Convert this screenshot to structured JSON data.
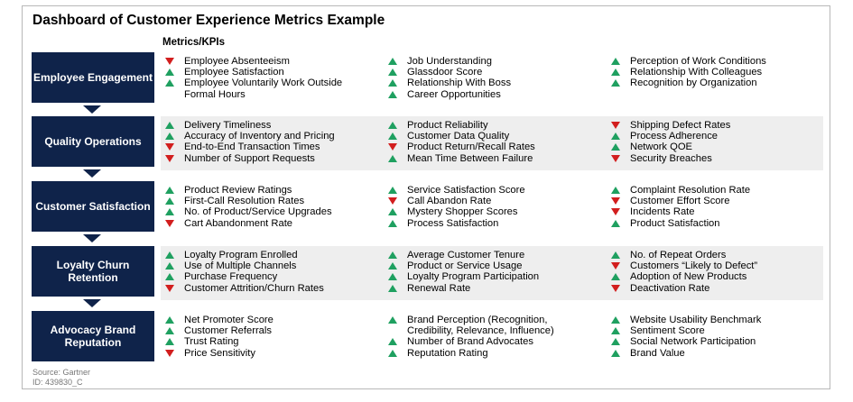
{
  "title": "Dashboard of Customer Experience Metrics Example",
  "subheading": "Metrics/KPIs",
  "colors": {
    "box": "#0f234a",
    "up": "#1fa060",
    "down": "#d21e1e",
    "band": "#eeeeee"
  },
  "categories": [
    {
      "label": "Employee Engagement",
      "columns": [
        [
          {
            "text": "Employee Absenteeism",
            "trend": "down"
          },
          {
            "text": "Employee Satisfaction",
            "trend": "up"
          },
          {
            "text": "Employee Voluntarily Work Outside Formal Hours",
            "trend": "up"
          }
        ],
        [
          {
            "text": "Job Understanding",
            "trend": "up"
          },
          {
            "text": "Glassdoor Score",
            "trend": "up"
          },
          {
            "text": "Relationship With Boss",
            "trend": "up"
          },
          {
            "text": "Career Opportunities",
            "trend": "up"
          }
        ],
        [
          {
            "text": "Perception of Work Conditions",
            "trend": "up"
          },
          {
            "text": "Relationship With Colleagues",
            "trend": "up"
          },
          {
            "text": "Recognition by Organization",
            "trend": "up"
          }
        ]
      ]
    },
    {
      "label": "Quality Operations",
      "columns": [
        [
          {
            "text": "Delivery Timeliness",
            "trend": "up"
          },
          {
            "text": "Accuracy of Inventory and Pricing",
            "trend": "up"
          },
          {
            "text": "End-to-End Transaction Times",
            "trend": "down"
          },
          {
            "text": "Number of Support Requests",
            "trend": "down"
          }
        ],
        [
          {
            "text": "Product Reliability",
            "trend": "up"
          },
          {
            "text": "Customer Data Quality",
            "trend": "up"
          },
          {
            "text": "Product Return/Recall Rates",
            "trend": "down"
          },
          {
            "text": "Mean Time Between Failure",
            "trend": "up"
          }
        ],
        [
          {
            "text": "Shipping Defect Rates",
            "trend": "down"
          },
          {
            "text": "Process Adherence",
            "trend": "up"
          },
          {
            "text": "Network QOE",
            "trend": "up"
          },
          {
            "text": "Security Breaches",
            "trend": "down"
          }
        ]
      ]
    },
    {
      "label": "Customer Satisfaction",
      "columns": [
        [
          {
            "text": "Product Review Ratings",
            "trend": "up"
          },
          {
            "text": "First-Call Resolution Rates",
            "trend": "up"
          },
          {
            "text": "No. of Product/Service Upgrades",
            "trend": "up"
          },
          {
            "text": "Cart Abandonment Rate",
            "trend": "down"
          }
        ],
        [
          {
            "text": "Service Satisfaction Score",
            "trend": "up"
          },
          {
            "text": "Call Abandon Rate",
            "trend": "down"
          },
          {
            "text": "Mystery Shopper Scores",
            "trend": "up"
          },
          {
            "text": "Process Satisfaction",
            "trend": "up"
          }
        ],
        [
          {
            "text": "Complaint Resolution Rate",
            "trend": "up"
          },
          {
            "text": "Customer Effort Score",
            "trend": "down"
          },
          {
            "text": "Incidents Rate",
            "trend": "down"
          },
          {
            "text": "Product Satisfaction",
            "trend": "up"
          }
        ]
      ]
    },
    {
      "label": "Loyalty Churn Retention",
      "columns": [
        [
          {
            "text": "Loyalty Program Enrolled",
            "trend": "up"
          },
          {
            "text": "Use of Multiple Channels",
            "trend": "up"
          },
          {
            "text": "Purchase Frequency",
            "trend": "up"
          },
          {
            "text": "Customer Attrition/Churn Rates",
            "trend": "down"
          }
        ],
        [
          {
            "text": "Average Customer Tenure",
            "trend": "up"
          },
          {
            "text": "Product or Service Usage",
            "trend": "up"
          },
          {
            "text": "Loyalty Program Participation",
            "trend": "up"
          },
          {
            "text": "Renewal Rate",
            "trend": "up"
          }
        ],
        [
          {
            "text": "No. of Repeat Orders",
            "trend": "up"
          },
          {
            "text": "Customers “Likely to Defect”",
            "trend": "down"
          },
          {
            "text": "Adoption of New Products",
            "trend": "up"
          },
          {
            "text": "Deactivation Rate",
            "trend": "down"
          }
        ]
      ]
    },
    {
      "label": "Advocacy Brand Reputation",
      "columns": [
        [
          {
            "text": "Net Promoter Score",
            "trend": "up"
          },
          {
            "text": "Customer Referrals",
            "trend": "up"
          },
          {
            "text": "Trust Rating",
            "trend": "up"
          },
          {
            "text": "Price Sensitivity",
            "trend": "down"
          }
        ],
        [
          {
            "text": "Brand Perception (Recognition, Credibility, Relevance, Influence)",
            "trend": "up"
          },
          {
            "text": "Number of Brand Advocates",
            "trend": "up"
          },
          {
            "text": "Reputation Rating",
            "trend": "up"
          }
        ],
        [
          {
            "text": "Website Usability Benchmark",
            "trend": "up"
          },
          {
            "text": "Sentiment Score",
            "trend": "up"
          },
          {
            "text": "Social Network Participation",
            "trend": "up"
          },
          {
            "text": "Brand Value",
            "trend": "up"
          }
        ]
      ]
    }
  ],
  "source": {
    "line1": "Source: Gartner",
    "line2": "ID: 439830_C"
  }
}
